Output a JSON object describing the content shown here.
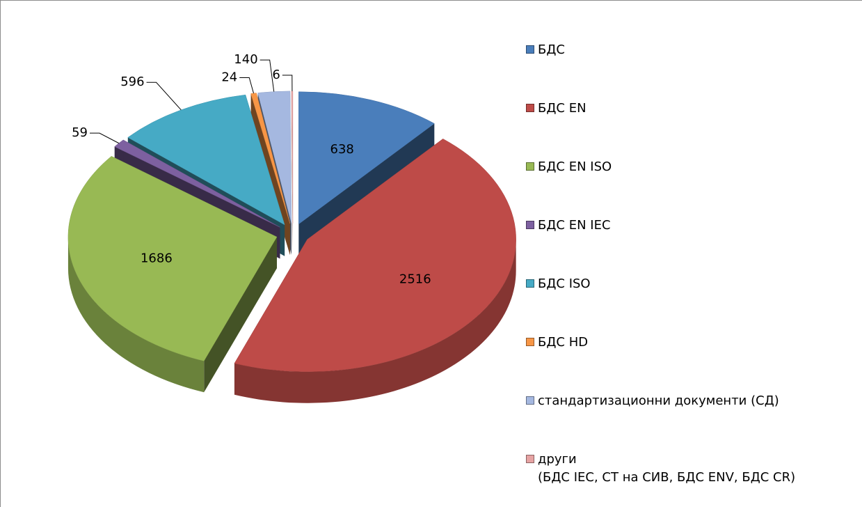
{
  "chart_data": {
    "type": "pie",
    "categories": [
      "БДС",
      "БДС EN",
      "БДС EN ISO",
      "БДС EN IEC",
      "БДС ISO",
      "БДС HD",
      "стандартизационни документи (СД)",
      "други\n(БДС IEC, СТ на СИВ, БДС ENV, БДС CR)"
    ],
    "values": [
      638,
      2516,
      1686,
      59,
      596,
      24,
      140,
      6
    ],
    "colors": [
      "#4a7ebb",
      "#be4b48",
      "#98b954",
      "#7d60a0",
      "#46aac5",
      "#f79646",
      "#a5b8e0",
      "#e6a3a3"
    ],
    "legend": "right"
  }
}
